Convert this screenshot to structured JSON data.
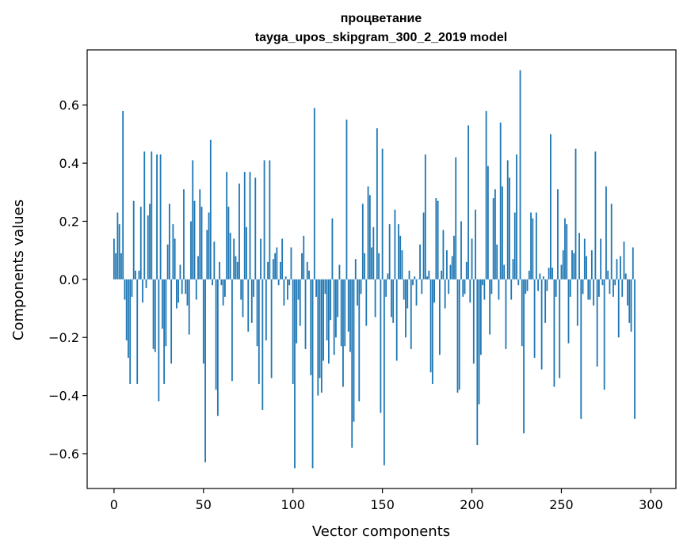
{
  "chart_data": {
    "type": "bar",
    "title": "процветание",
    "subtitle": "tayga_upos_skipgram_300_2_2019 model",
    "xlabel": "Vector components",
    "ylabel": "Components values",
    "xlim": [
      -15,
      314
    ],
    "ylim": [
      -0.72,
      0.79
    ],
    "xticks": [
      0,
      50,
      100,
      150,
      200,
      250,
      300
    ],
    "xtick_labels": [
      "0",
      "50",
      "100",
      "150",
      "200",
      "250",
      "300"
    ],
    "yticks": [
      -0.6,
      -0.4,
      -0.2,
      0.0,
      0.2,
      0.4,
      0.6
    ],
    "ytick_labels": [
      "−0.6",
      "−0.4",
      "−0.2",
      "0.0",
      "0.2",
      "0.4",
      "0.6"
    ],
    "grid": false,
    "bar_color": "#1f77b4",
    "x": "0..299 (one bar per vector component index)",
    "values": [
      0.14,
      0.09,
      0.23,
      0.19,
      0.09,
      0.58,
      -0.07,
      -0.21,
      -0.27,
      -0.36,
      -0.06,
      0.27,
      0.03,
      -0.36,
      0.03,
      0.25,
      -0.08,
      0.44,
      -0.03,
      0.22,
      0.26,
      0.44,
      -0.24,
      -0.25,
      0.43,
      -0.42,
      0.43,
      -0.17,
      -0.36,
      -0.23,
      0.12,
      0.26,
      -0.29,
      0.19,
      0.14,
      -0.1,
      -0.08,
      0.05,
      -0.05,
      0.31,
      -0.05,
      -0.09,
      -0.19,
      0.2,
      0.41,
      0.27,
      -0.07,
      0.08,
      0.31,
      0.25,
      -0.29,
      -0.63,
      0.17,
      0.23,
      0.48,
      -0.02,
      0.13,
      -0.38,
      -0.47,
      0.06,
      -0.02,
      -0.09,
      -0.06,
      0.37,
      0.25,
      0.16,
      -0.35,
      0.14,
      0.08,
      0.06,
      0.33,
      -0.07,
      -0.13,
      0.37,
      0.18,
      -0.18,
      0.37,
      -0.15,
      -0.06,
      0.35,
      -0.23,
      -0.36,
      0.14,
      -0.45,
      0.41,
      -0.21,
      0.06,
      0.41,
      -0.34,
      0.07,
      0.09,
      0.11,
      -0.02,
      0.06,
      0.14,
      -0.09,
      0.01,
      -0.07,
      -0.02,
      0.11,
      -0.36,
      -0.65,
      -0.22,
      -0.07,
      -0.16,
      0.09,
      0.15,
      -0.24,
      0.06,
      0.03,
      -0.33,
      -0.65,
      0.59,
      -0.06,
      -0.4,
      -0.34,
      -0.39,
      -0.28,
      -0.05,
      -0.21,
      -0.29,
      -0.14,
      0.21,
      -0.26,
      -0.2,
      -0.13,
      0.05,
      -0.23,
      -0.37,
      -0.23,
      0.55,
      -0.18,
      -0.25,
      -0.58,
      -0.49,
      0.07,
      -0.09,
      -0.42,
      -0.05,
      0.26,
      0.09,
      -0.16,
      0.32,
      0.29,
      0.11,
      0.18,
      -0.13,
      0.52,
      0.09,
      -0.46,
      0.45,
      -0.64,
      -0.06,
      0.02,
      0.19,
      -0.13,
      -0.15,
      0.24,
      -0.28,
      0.19,
      0.15,
      0.1,
      -0.07,
      -0.2,
      -0.1,
      0.03,
      -0.24,
      -0.02,
      0.01,
      -0.09,
      0.0,
      0.12,
      -0.05,
      0.23,
      0.43,
      0.01,
      0.03,
      -0.32,
      -0.36,
      -0.08,
      0.28,
      0.27,
      -0.26,
      0.03,
      0.17,
      -0.1,
      0.1,
      -0.05,
      0.05,
      0.08,
      0.15,
      0.42,
      -0.39,
      -0.38,
      0.2,
      -0.06,
      -0.05,
      0.06,
      0.53,
      -0.08,
      0.14,
      -0.29,
      0.24,
      -0.57,
      -0.43,
      -0.26,
      -0.02,
      -0.07,
      0.58,
      0.39,
      -0.19,
      -0.05,
      0.28,
      0.31,
      0.12,
      -0.07,
      0.54,
      0.32,
      0.05,
      -0.24,
      0.41,
      0.35,
      -0.07,
      0.07,
      0.23,
      0.43,
      -0.02,
      0.72,
      -0.23,
      -0.53,
      -0.05,
      -0.04,
      0.03,
      0.23,
      0.21,
      -0.27,
      0.23,
      -0.04,
      0.02,
      -0.31,
      0.01,
      -0.15,
      -0.04,
      0.04,
      0.5,
      0.04,
      -0.37,
      -0.06,
      0.31,
      -0.34,
      0.05,
      0.1,
      0.21,
      0.19,
      -0.22,
      -0.06,
      0.1,
      0.09,
      0.45,
      -0.16,
      0.16,
      -0.48,
      -0.05,
      0.14,
      0.08,
      -0.07,
      -0.07,
      0.1,
      -0.09,
      0.44,
      -0.3,
      -0.06,
      0.14,
      -0.02,
      -0.38,
      0.32,
      0.03,
      -0.05,
      0.26,
      -0.06,
      -0.02,
      0.07,
      -0.2,
      0.08,
      -0.06,
      0.13,
      0.02,
      -0.09,
      -0.15,
      -0.18,
      0.11,
      -0.48
    ]
  }
}
